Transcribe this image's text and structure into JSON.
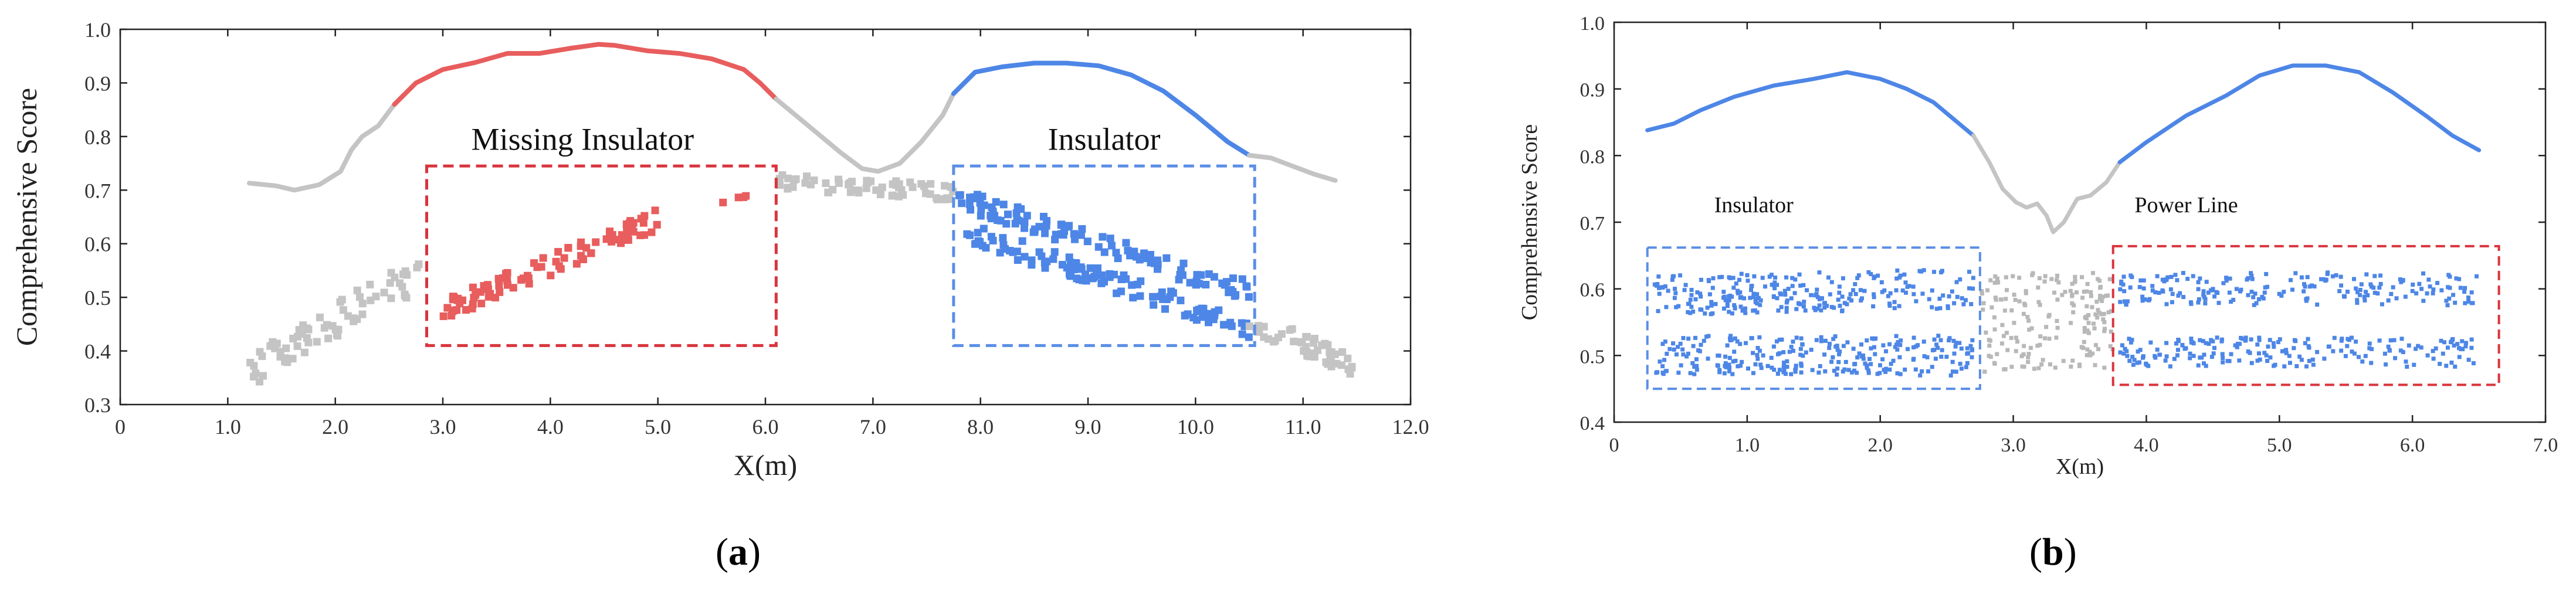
{
  "chart_data": [
    {
      "panel": "a",
      "type": "line+scatter",
      "caption_label": "a",
      "xlabel": "X(m)",
      "ylabel": "Comprehensive Score",
      "xlim": [
        0,
        12
      ],
      "ylim": [
        0.3,
        1.0
      ],
      "xticks": [
        0,
        1.0,
        2.0,
        3.0,
        4.0,
        5.0,
        6.0,
        7.0,
        8.0,
        9.0,
        10.0,
        11.0,
        12.0
      ],
      "xtick_labels": [
        "0",
        "1.0",
        "2.0",
        "3.0",
        "4.0",
        "5.0",
        "6.0",
        "7.0",
        "8.0",
        "9.0",
        "10.0",
        "11.0",
        "12.0"
      ],
      "yticks": [
        0.3,
        0.4,
        0.5,
        0.6,
        0.7,
        0.8,
        0.9,
        1.0
      ],
      "ytick_labels": [
        "0.3",
        "0.4",
        "0.5",
        "0.6",
        "0.7",
        "0.8",
        "0.9",
        "1.0"
      ],
      "annotations": [
        {
          "text": "Missing Insulator",
          "x": 4.3,
          "y": 0.775
        },
        {
          "text": "Insulator",
          "x": 9.15,
          "y": 0.775
        }
      ],
      "boxes": [
        {
          "name": "missing-insulator-box",
          "x0": 2.85,
          "x1": 6.1,
          "y0": 0.41,
          "y1": 0.745,
          "color": "#d9343d"
        },
        {
          "name": "insulator-box",
          "x0": 7.75,
          "x1": 10.55,
          "y0": 0.41,
          "y1": 0.745,
          "color": "#5b8ee6"
        }
      ],
      "series": [
        {
          "name": "score-curve-gray-left",
          "kind": "line",
          "color": "#c4c4c4",
          "x": [
            1.2,
            1.45,
            1.62,
            1.85,
            2.05,
            2.15,
            2.25,
            2.4,
            2.55
          ],
          "y": [
            0.713,
            0.708,
            0.7,
            0.71,
            0.735,
            0.775,
            0.8,
            0.82,
            0.86
          ]
        },
        {
          "name": "score-curve-red",
          "kind": "line",
          "color": "#e85d5d",
          "x": [
            2.55,
            2.75,
            3.0,
            3.3,
            3.6,
            3.9,
            4.2,
            4.45,
            4.6,
            4.9,
            5.2,
            5.5,
            5.8,
            5.95,
            6.1
          ],
          "y": [
            0.86,
            0.9,
            0.925,
            0.938,
            0.955,
            0.955,
            0.965,
            0.972,
            0.97,
            0.96,
            0.955,
            0.945,
            0.925,
            0.9,
            0.87
          ]
        },
        {
          "name": "score-curve-gray-middle",
          "kind": "line",
          "color": "#c4c4c4",
          "x": [
            6.1,
            6.4,
            6.7,
            6.9,
            7.05,
            7.25,
            7.45,
            7.65,
            7.75
          ],
          "y": [
            0.87,
            0.82,
            0.77,
            0.74,
            0.735,
            0.75,
            0.79,
            0.84,
            0.88
          ]
        },
        {
          "name": "score-curve-blue",
          "kind": "line",
          "color": "#4d86e6",
          "x": [
            7.75,
            7.95,
            8.2,
            8.5,
            8.8,
            9.1,
            9.4,
            9.7,
            10.0,
            10.3,
            10.5
          ],
          "y": [
            0.88,
            0.92,
            0.93,
            0.937,
            0.937,
            0.932,
            0.915,
            0.885,
            0.84,
            0.79,
            0.765
          ]
        },
        {
          "name": "score-curve-gray-right",
          "kind": "line",
          "color": "#c4c4c4",
          "x": [
            10.5,
            10.7,
            10.9,
            11.1,
            11.3
          ],
          "y": [
            0.765,
            0.76,
            0.745,
            0.73,
            0.718
          ]
        }
      ],
      "scatter_groups": [
        {
          "name": "gray-points-left",
          "color": "#c4c4c4",
          "x_range": [
            1.2,
            2.8
          ],
          "y_start": 0.36,
          "y_end": 0.55,
          "spread": 0.035,
          "count": 70
        },
        {
          "name": "missing-insulator-points",
          "color": "#e85d5d",
          "x_range": [
            3.0,
            5.0
          ],
          "y_start": 0.475,
          "y_end": 0.645,
          "spread": 0.02,
          "count": 90
        },
        {
          "name": "missing-insulator-points-extra",
          "color": "#e85d5d",
          "x_range": [
            5.6,
            5.9
          ],
          "y_start": 0.675,
          "y_end": 0.69,
          "spread": 0.005,
          "count": 4
        },
        {
          "name": "gray-points-middle",
          "color": "#c4c4c4",
          "x_range": [
            6.1,
            7.8
          ],
          "y_start": 0.715,
          "y_end": 0.695,
          "spread": 0.015,
          "count": 60
        },
        {
          "name": "insulator-points-upper",
          "color": "#4d86e6",
          "x_range": [
            7.8,
            10.5
          ],
          "y_start": 0.685,
          "y_end": 0.51,
          "spread": 0.02,
          "count": 110
        },
        {
          "name": "insulator-points-lower",
          "color": "#4d86e6",
          "x_range": [
            7.8,
            10.5
          ],
          "y_start": 0.625,
          "y_end": 0.445,
          "spread": 0.02,
          "count": 110
        },
        {
          "name": "gray-points-right",
          "color": "#c4c4c4",
          "x_range": [
            10.5,
            11.5
          ],
          "y_start": 0.455,
          "y_end": 0.37,
          "spread": 0.02,
          "count": 50
        }
      ]
    },
    {
      "panel": "b",
      "type": "line+scatter",
      "caption_label": "b",
      "xlabel": "X(m)",
      "ylabel": "Comprehensive Score",
      "xlim": [
        0,
        7
      ],
      "ylim": [
        0.4,
        1.0
      ],
      "xticks": [
        0,
        1.0,
        2.0,
        3.0,
        4.0,
        5.0,
        6.0,
        7.0
      ],
      "xtick_labels": [
        "0",
        "1.0",
        "2.0",
        "3.0",
        "4.0",
        "5.0",
        "6.0",
        "7.0"
      ],
      "yticks": [
        0.4,
        0.5,
        0.6,
        0.7,
        0.8,
        0.9,
        1.0
      ],
      "ytick_labels": [
        "0.4",
        "0.5",
        "0.6",
        "0.7",
        "0.8",
        "0.9",
        "1.0"
      ],
      "annotations": [
        {
          "text": "Insulator",
          "x": 1.05,
          "y": 0.715
        },
        {
          "text": "Power Line",
          "x": 4.3,
          "y": 0.715
        }
      ],
      "boxes": [
        {
          "name": "insulator-box",
          "x0": 0.25,
          "x1": 2.75,
          "y0": 0.45,
          "y1": 0.662,
          "color": "#5b8ee6"
        },
        {
          "name": "power-line-box",
          "x0": 3.75,
          "x1": 6.65,
          "y0": 0.456,
          "y1": 0.664,
          "color": "#d9343d"
        }
      ],
      "series": [
        {
          "name": "score-curve-blue-left",
          "kind": "line",
          "color": "#4d86e6",
          "x": [
            0.25,
            0.45,
            0.65,
            0.9,
            1.2,
            1.5,
            1.75,
            2.0,
            2.2,
            2.4,
            2.55,
            2.7
          ],
          "y": [
            0.838,
            0.848,
            0.868,
            0.888,
            0.905,
            0.915,
            0.925,
            0.915,
            0.9,
            0.88,
            0.855,
            0.83
          ]
        },
        {
          "name": "score-curve-gray-middle",
          "kind": "line",
          "color": "#c4c4c4",
          "x": [
            2.7,
            2.82,
            2.92,
            3.02,
            3.1,
            3.18,
            3.25,
            3.3,
            3.38,
            3.48,
            3.58,
            3.7,
            3.8
          ],
          "y": [
            0.83,
            0.79,
            0.75,
            0.73,
            0.722,
            0.728,
            0.71,
            0.685,
            0.7,
            0.735,
            0.74,
            0.76,
            0.79
          ]
        },
        {
          "name": "score-curve-blue-right",
          "kind": "line",
          "color": "#4d86e6",
          "x": [
            3.8,
            4.0,
            4.3,
            4.6,
            4.85,
            5.1,
            5.35,
            5.6,
            5.85,
            6.1,
            6.3,
            6.5
          ],
          "y": [
            0.79,
            0.82,
            0.86,
            0.89,
            0.92,
            0.935,
            0.935,
            0.925,
            0.895,
            0.86,
            0.83,
            0.808
          ]
        }
      ],
      "scatter_groups": [
        {
          "name": "insulator-points-upper",
          "color": "#4d86e6",
          "x_range": [
            0.3,
            2.7
          ],
          "y_start": 0.59,
          "y_end": 0.6,
          "spread": 0.03,
          "count": 260
        },
        {
          "name": "insulator-points-lower",
          "color": "#4d86e6",
          "x_range": [
            0.3,
            2.7
          ],
          "y_start": 0.5,
          "y_end": 0.5,
          "spread": 0.03,
          "count": 260
        },
        {
          "name": "gray-points-middle",
          "color": "#b8b8b8",
          "x_range": [
            2.75,
            3.75
          ],
          "y_start": 0.55,
          "y_end": 0.55,
          "spread": 0.075,
          "count": 180
        },
        {
          "name": "power-line-points-upper",
          "color": "#4d86e6",
          "x_range": [
            3.8,
            6.5
          ],
          "y_start": 0.6,
          "y_end": 0.6,
          "spread": 0.025,
          "count": 200
        },
        {
          "name": "power-line-points-lower",
          "color": "#4d86e6",
          "x_range": [
            3.8,
            6.5
          ],
          "y_start": 0.505,
          "y_end": 0.505,
          "spread": 0.022,
          "count": 200
        }
      ]
    }
  ]
}
